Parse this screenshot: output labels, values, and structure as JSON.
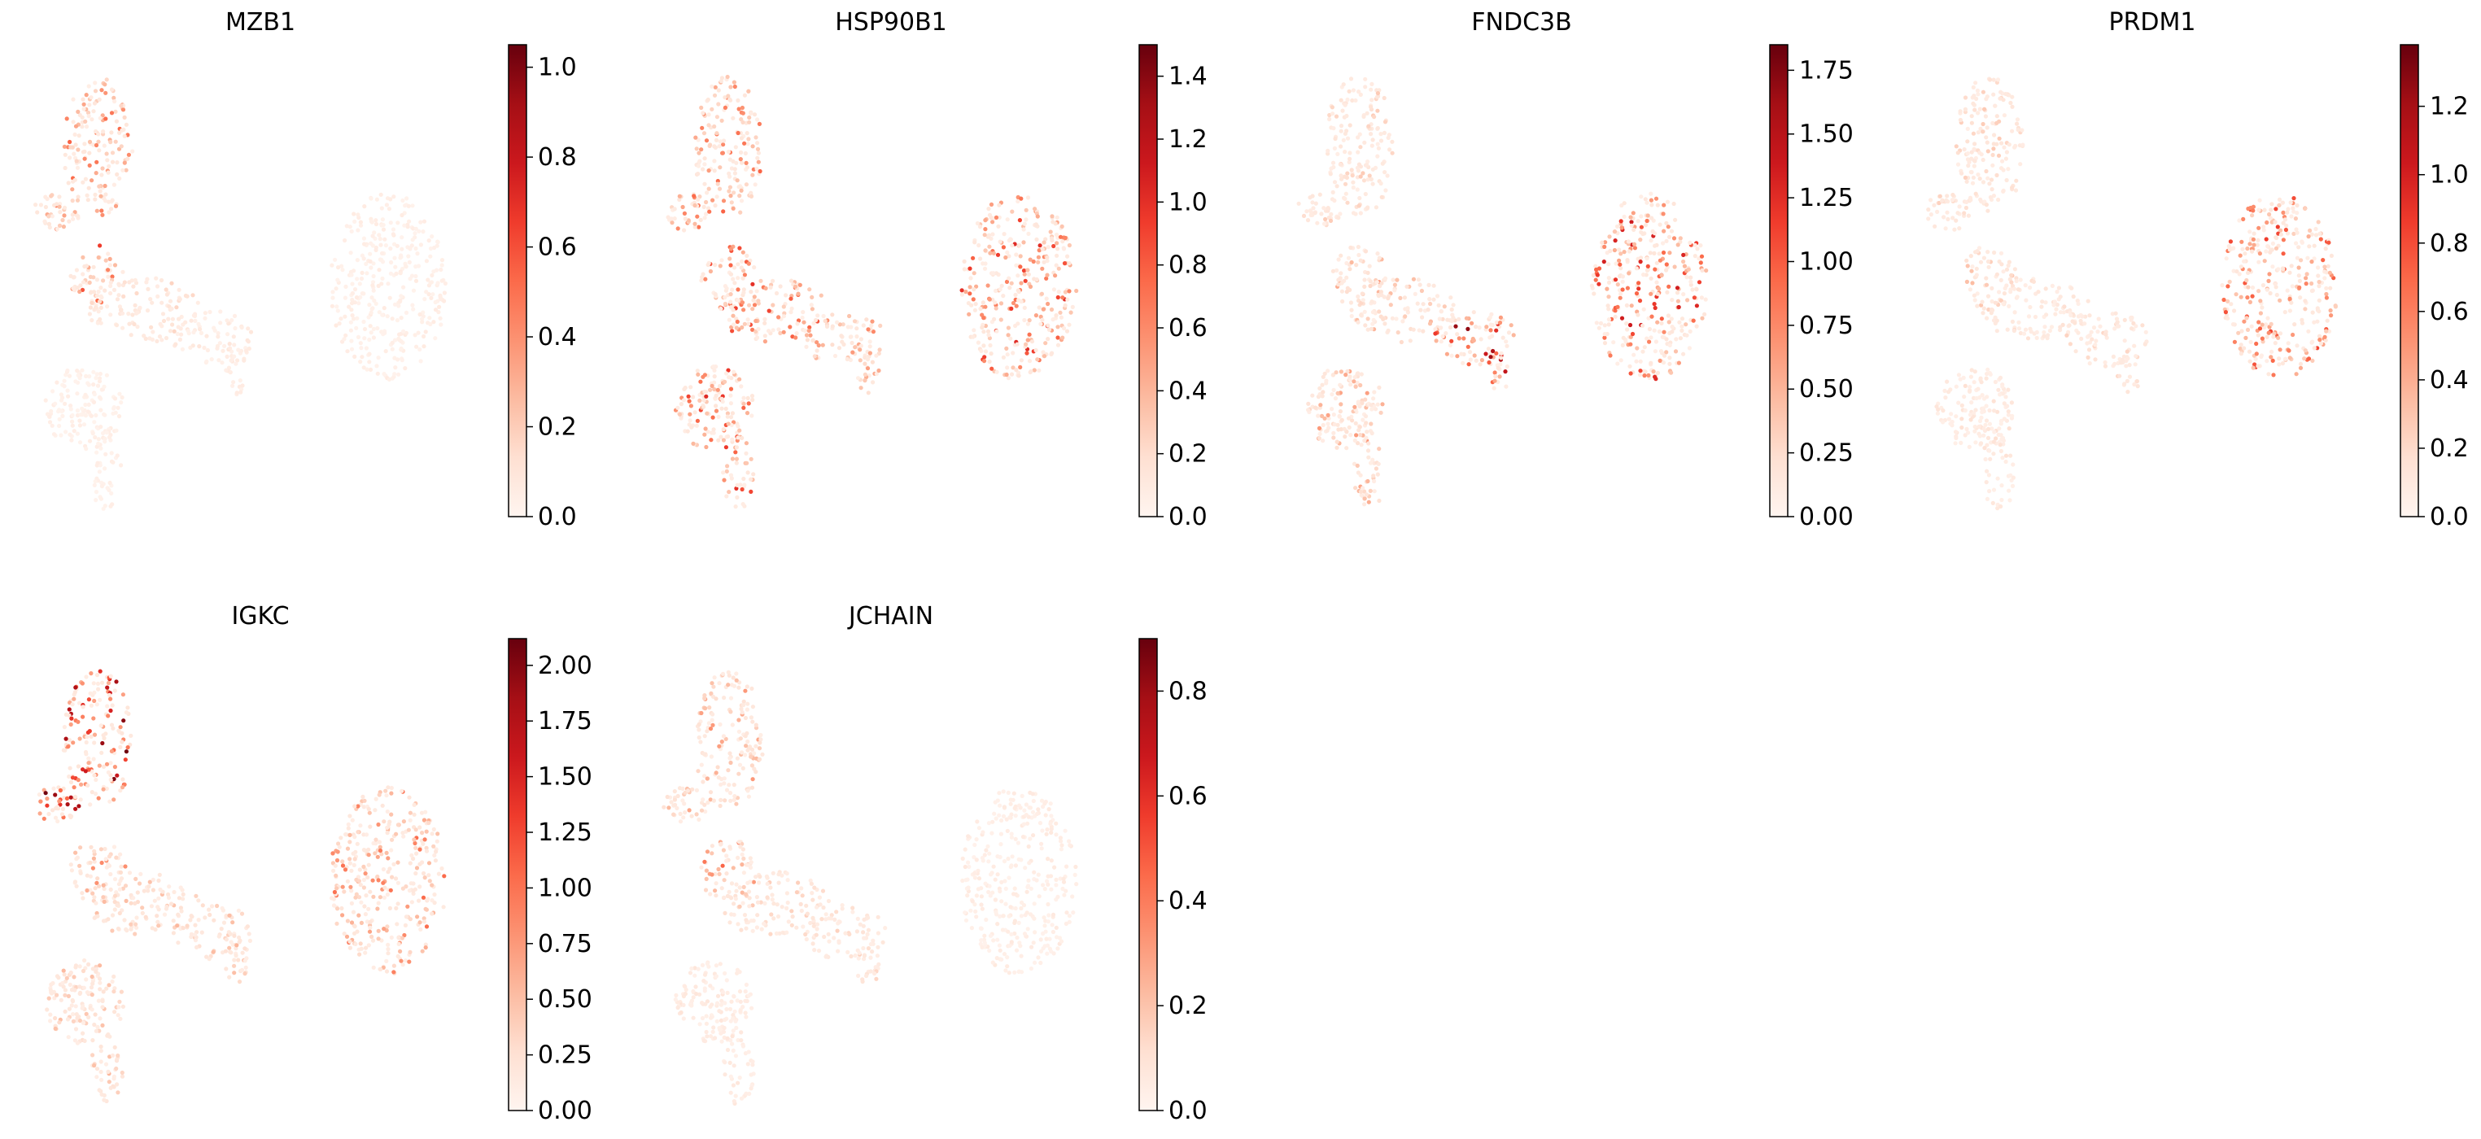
{
  "figure_title": "",
  "colormap": {
    "name": "Reds",
    "stops": [
      "#fff5f0",
      "#fee0d2",
      "#fcbba1",
      "#fc9272",
      "#fb6a4a",
      "#ef3b2c",
      "#cb181d",
      "#a50f15",
      "#67000d"
    ]
  },
  "chart_data": [
    {
      "type": "scatter",
      "title": "MZB1",
      "xlabel": "",
      "ylabel": "",
      "colorbar": {
        "min": 0.0,
        "max": 1.05,
        "ticks": [
          0.0,
          0.2,
          0.4,
          0.6,
          0.8,
          1.0
        ],
        "tick_labels": [
          "0.0",
          "0.2",
          "0.4",
          "0.6",
          "0.8",
          "1.0"
        ]
      },
      "regions": {
        "topleft": 0.42,
        "junction": 0.5,
        "center": 0.14,
        "arm": 0.07,
        "bottom": 0.04,
        "right": 0.05
      },
      "seed": 11
    },
    {
      "type": "scatter",
      "title": "HSP90B1",
      "xlabel": "",
      "ylabel": "",
      "colorbar": {
        "min": 0.0,
        "max": 1.5,
        "ticks": [
          0.0,
          0.2,
          0.4,
          0.6,
          0.8,
          1.0,
          1.2,
          1.4
        ],
        "tick_labels": [
          "0.0",
          "0.2",
          "0.4",
          "0.6",
          "0.8",
          "1.0",
          "1.2",
          "1.4"
        ]
      },
      "regions": {
        "topleft": 0.42,
        "junction": 0.58,
        "center": 0.5,
        "arm": 0.33,
        "bottom": 0.56,
        "right": 0.56
      },
      "seed": 23
    },
    {
      "type": "scatter",
      "title": "FNDC3B",
      "xlabel": "",
      "ylabel": "",
      "colorbar": {
        "min": 0.0,
        "max": 1.85,
        "ticks": [
          0.0,
          0.25,
          0.5,
          0.75,
          1.0,
          1.25,
          1.5,
          1.75
        ],
        "tick_labels": [
          "0.00",
          "0.25",
          "0.50",
          "0.75",
          "1.00",
          "1.25",
          "1.50",
          "1.75"
        ]
      },
      "regions": {
        "topleft": 0.16,
        "junction": 0.3,
        "center": 0.22,
        "arm": 0.74,
        "bottom": 0.3,
        "right": 0.6
      },
      "seed": 37
    },
    {
      "type": "scatter",
      "title": "PRDM1",
      "xlabel": "",
      "ylabel": "",
      "colorbar": {
        "min": 0.0,
        "max": 1.38,
        "ticks": [
          0.0,
          0.2,
          0.4,
          0.6,
          0.8,
          1.0,
          1.2
        ],
        "tick_labels": [
          "0.0",
          "0.2",
          "0.4",
          "0.6",
          "0.8",
          "1.0",
          "1.2"
        ]
      },
      "regions": {
        "topleft": 0.16,
        "junction": 0.2,
        "center": 0.12,
        "arm": 0.14,
        "bottom": 0.1,
        "right": 0.5
      },
      "seed": 41
    },
    {
      "type": "scatter",
      "title": "IGKC",
      "xlabel": "",
      "ylabel": "",
      "colorbar": {
        "min": 0.0,
        "max": 2.12,
        "ticks": [
          0.0,
          0.25,
          0.5,
          0.75,
          1.0,
          1.25,
          1.5,
          1.75,
          2.0
        ],
        "tick_labels": [
          "0.00",
          "0.25",
          "0.50",
          "0.75",
          "1.00",
          "1.25",
          "1.50",
          "1.75",
          "2.00"
        ]
      },
      "regions": {
        "topleft": 0.8,
        "junction": 0.32,
        "center": 0.2,
        "arm": 0.22,
        "bottom": 0.22,
        "right": 0.4
      },
      "seed": 53
    },
    {
      "type": "scatter",
      "title": "JCHAIN",
      "xlabel": "",
      "ylabel": "",
      "colorbar": {
        "min": 0.0,
        "max": 0.9,
        "ticks": [
          0.0,
          0.2,
          0.4,
          0.6,
          0.8
        ],
        "tick_labels": [
          "0.0",
          "0.2",
          "0.4",
          "0.6",
          "0.8"
        ]
      },
      "regions": {
        "topleft": 0.3,
        "junction": 0.42,
        "center": 0.16,
        "arm": 0.14,
        "bottom": 0.08,
        "right": 0.06
      },
      "seed": 67
    }
  ]
}
